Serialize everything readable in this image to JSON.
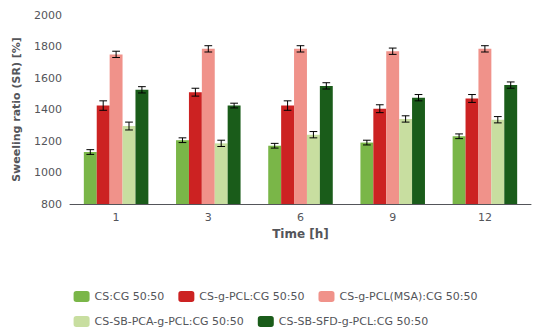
{
  "chart_data": {
    "type": "bar",
    "xlabel": "Time [h]",
    "ylabel": "Sweeling ratio (SR) [%]",
    "categories": [
      "1",
      "3",
      "6",
      "9",
      "12"
    ],
    "series": [
      {
        "name": "CS:CG 50:50",
        "color": "#7ab648",
        "values": [
          1130,
          1205,
          1170,
          1190,
          1230
        ],
        "errors": [
          15,
          15,
          15,
          15,
          15
        ]
      },
      {
        "name": "CS-g-PCL:CG 50:50",
        "color": "#cc2222",
        "values": [
          1425,
          1510,
          1425,
          1405,
          1470
        ],
        "errors": [
          30,
          25,
          30,
          25,
          25
        ]
      },
      {
        "name": "CS-g-PCL(MSA):CG 50:50",
        "color": "#f0928a",
        "values": [
          1750,
          1785,
          1785,
          1770,
          1785
        ],
        "errors": [
          20,
          20,
          20,
          20,
          20
        ]
      },
      {
        "name": "CS-SB-PCA-g-PCL:CG 50:50",
        "color": "#c8dea0",
        "values": [
          1295,
          1185,
          1240,
          1340,
          1335
        ],
        "errors": [
          25,
          20,
          20,
          20,
          20
        ]
      },
      {
        "name": "CS-SB-SFD-g-PCL:CG 50:50",
        "color": "#1a5c1a",
        "values": [
          1525,
          1425,
          1550,
          1475,
          1555
        ],
        "errors": [
          20,
          15,
          20,
          20,
          20
        ]
      }
    ],
    "ylim": [
      800,
      2000
    ],
    "yticks": [
      800,
      1000,
      1200,
      1400,
      1600,
      1800,
      2000
    ],
    "grid": false,
    "legend": "bottom"
  }
}
